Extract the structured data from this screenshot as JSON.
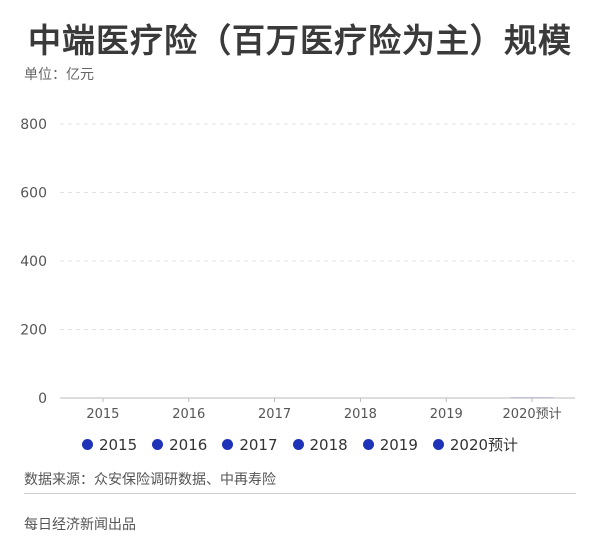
{
  "title": "中端医疗险（百万医疗险为主）规模",
  "unit": "单位：亿元",
  "source": "数据来源：众安保险调研数据、中再寿险",
  "credit": "每日经济新闻出品",
  "colors": {
    "series": "#1f33b8",
    "grid": "#e3e3e3",
    "axis": "#bbbbbb",
    "tick": "#555555"
  },
  "chart_data": {
    "type": "bar",
    "categories": [
      "2015",
      "2016",
      "2017",
      "2018",
      "2019",
      "2020预计"
    ],
    "series": [
      {
        "values": [
          0,
          0,
          0,
          0,
          0,
          2
        ]
      }
    ],
    "ylim": [
      0,
      800
    ],
    "yticks": [
      0,
      200,
      400,
      600,
      800
    ],
    "grid": true,
    "legend_position": "bottom",
    "legend": [
      "2015",
      "2016",
      "2017",
      "2018",
      "2019",
      "2020预计"
    ]
  }
}
